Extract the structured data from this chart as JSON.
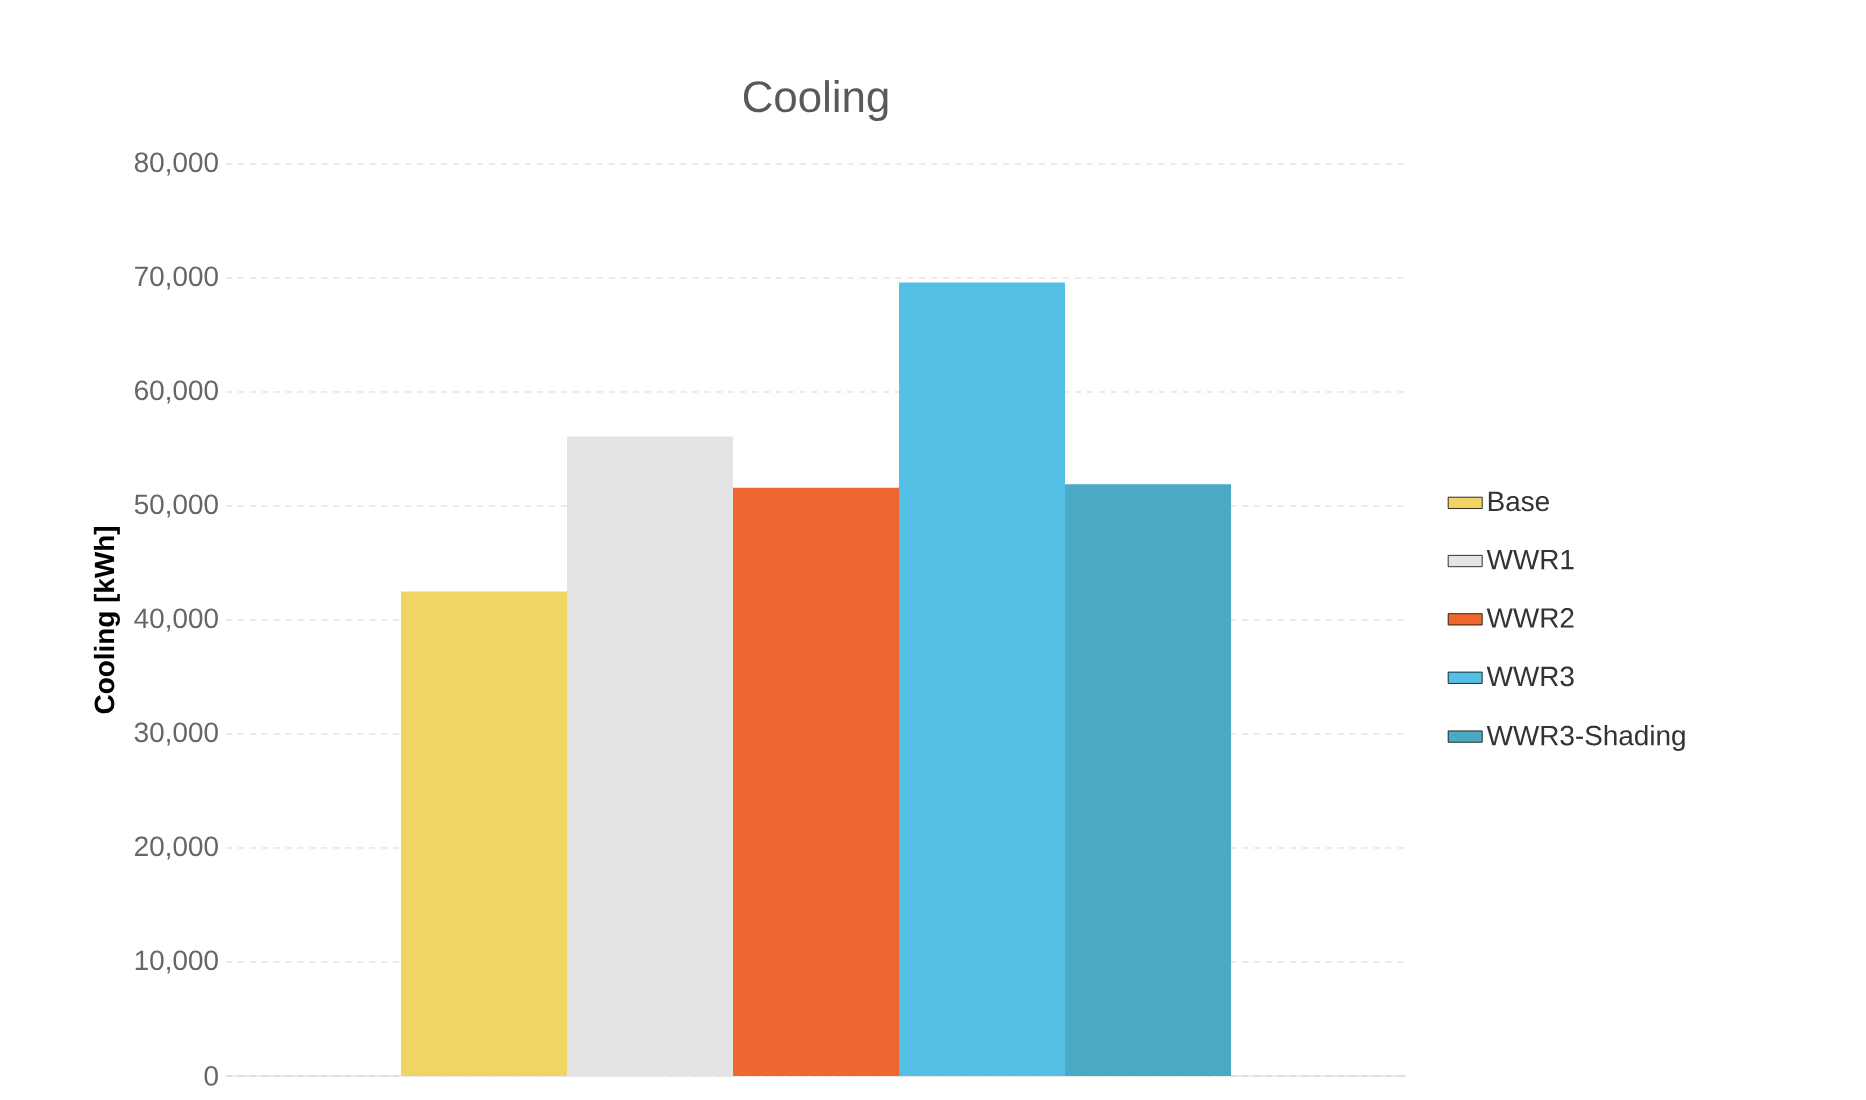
{
  "chart_data": {
    "type": "bar",
    "title": "Cooling",
    "ylabel": "Cooling [kWh]",
    "categories": [
      null
    ],
    "series": [
      {
        "name": "Base",
        "color": "#f0d565",
        "values": [
          42500
        ]
      },
      {
        "name": "WWR1",
        "color": "#e4e4e4",
        "values": [
          56100
        ]
      },
      {
        "name": "WWR2",
        "color": "#ee6730",
        "values": [
          51600
        ]
      },
      {
        "name": "WWR3",
        "color": "#54c0e6",
        "values": [
          69600
        ]
      },
      {
        "name": "WWR3-Shading",
        "color": "#4aaac6",
        "values": [
          51900
        ]
      }
    ],
    "ylim": [
      0,
      80000
    ],
    "yticks": [
      0,
      {
        "value": 10000,
        "label": "10,000"
      },
      {
        "value": 20000,
        "label": "20,000"
      },
      {
        "value": 30000,
        "label": "30,000"
      },
      {
        "value": 40000,
        "label": "40,000"
      },
      {
        "value": 50000,
        "label": "50,000"
      },
      {
        "value": 60000,
        "label": "60,000"
      },
      {
        "value": 70000,
        "label": "70,000"
      },
      {
        "value": 80000,
        "label": "80,000"
      }
    ],
    "grid": "y",
    "legend": "right"
  }
}
